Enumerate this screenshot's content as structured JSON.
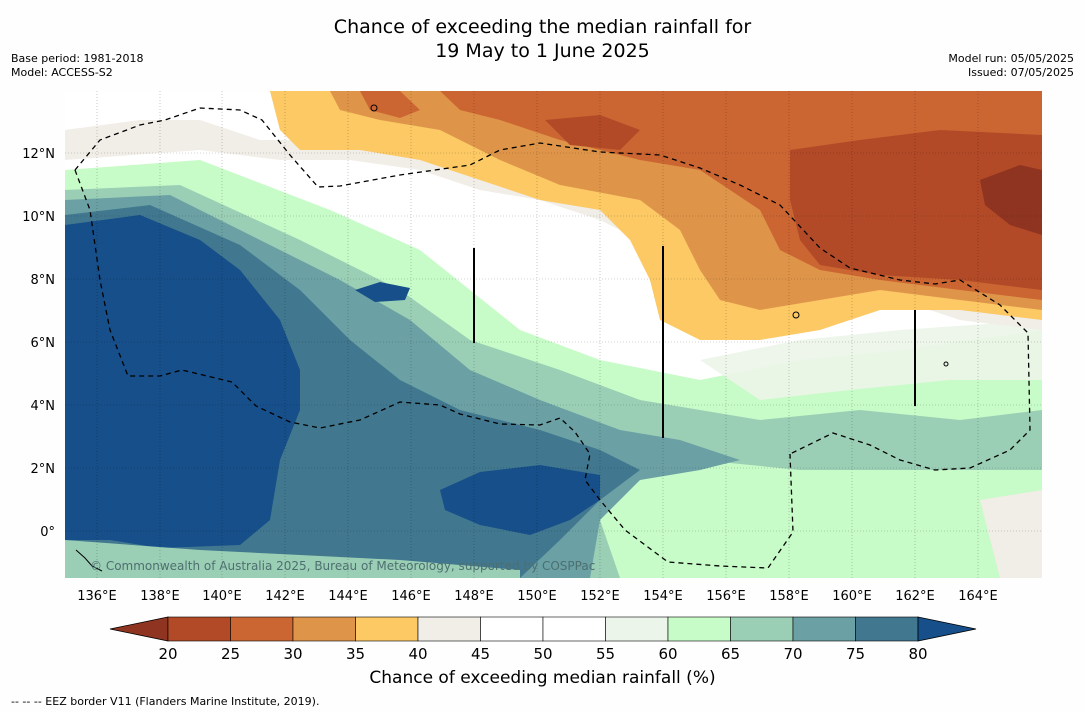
{
  "header": {
    "title_line1": "Chance of exceeding the median rainfall for",
    "title_line2": "19 May to 1 June 2025",
    "base_period": "Base period: 1981-2018",
    "model": "Model: ACCESS-S2",
    "model_run": "Model run: 05/05/2025",
    "issued": "Issued: 07/05/2025"
  },
  "map": {
    "lon_range": [
      135,
      166
    ],
    "lat_range": [
      -1.5,
      14
    ],
    "x_ticks": [
      "136°E",
      "138°E",
      "140°E",
      "142°E",
      "144°E",
      "146°E",
      "148°E",
      "150°E",
      "152°E",
      "154°E",
      "156°E",
      "158°E",
      "160°E",
      "162°E",
      "164°E"
    ],
    "y_ticks": [
      "12°N",
      "10°N",
      "8°N",
      "6°N",
      "4°N",
      "2°N",
      "0°"
    ],
    "watermark": "© Commonwealth of Australia 2025, Bureau of Meteorology, supported by COSPPac"
  },
  "colorbar": {
    "ticks": [
      "20",
      "25",
      "30",
      "35",
      "40",
      "45",
      "50",
      "55",
      "60",
      "65",
      "70",
      "75",
      "80"
    ],
    "colors": [
      "#8e3420",
      "#b24a27",
      "#cb6633",
      "#df9549",
      "#fcc965",
      "#f1ede7",
      "#ffffff",
      "#ffffff",
      "#ecf5e9",
      "#c7fbc7",
      "#9bcfb5",
      "#6ba1a4",
      "#41788f",
      "#164f89"
    ],
    "title": "Chance of exceeding median rainfall (%)"
  },
  "footnote": "--  --  -- EEZ border V11 (Flanders Marine Institute, 2019)."
}
